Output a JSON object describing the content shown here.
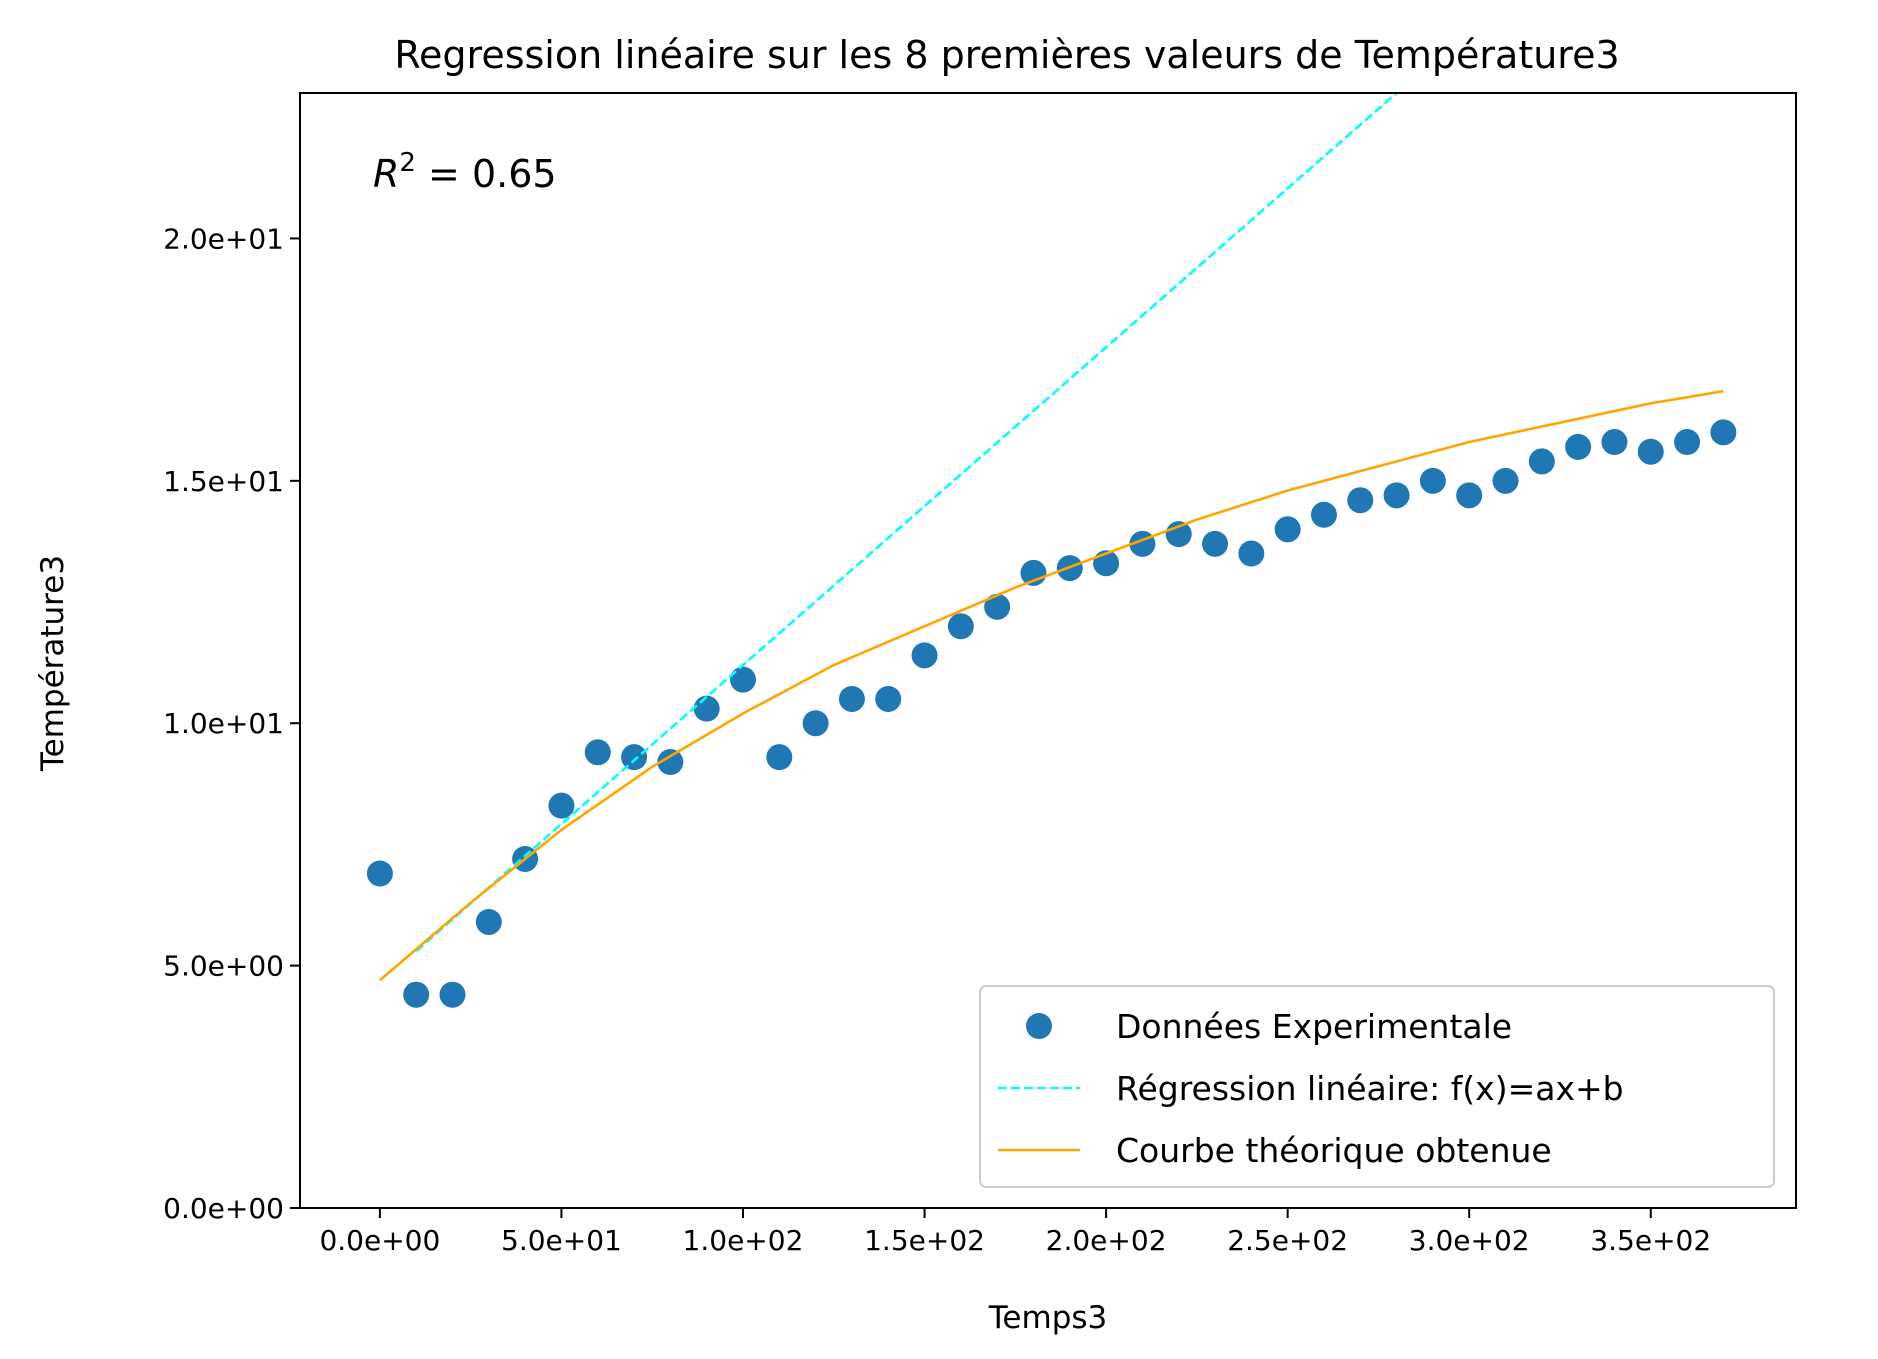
{
  "chart_data": {
    "type": "scatter",
    "title": "Regression linéaire sur les 8 premières valeurs de Température3",
    "xlabel": "Temps3",
    "ylabel": "Température3",
    "xlim": [
      -22,
      390
    ],
    "ylim": [
      0,
      23
    ],
    "x_ticks": [
      0,
      50,
      100,
      150,
      200,
      250,
      300,
      350
    ],
    "x_tick_labels": [
      "0.0e+00",
      "5.0e+01",
      "1.0e+02",
      "1.5e+02",
      "2.0e+02",
      "2.5e+02",
      "3.0e+02",
      "3.5e+02"
    ],
    "y_ticks": [
      0,
      5,
      10,
      15,
      20
    ],
    "y_tick_labels": [
      "0.0e+00",
      "5.0e+00",
      "1.0e+01",
      "1.5e+01",
      "2.0e+01"
    ],
    "annotation": "R² = 0.65",
    "grid": false,
    "legend_position": "lower-right",
    "series": [
      {
        "name": "Données Experimentale",
        "kind": "scatter",
        "color": "#1f77b4",
        "x": [
          0,
          10,
          20,
          30,
          40,
          50,
          60,
          70,
          80,
          90,
          100,
          110,
          120,
          130,
          140,
          150,
          160,
          170,
          180,
          190,
          200,
          210,
          220,
          230,
          240,
          250,
          260,
          270,
          280,
          290,
          300,
          310,
          320,
          330,
          340,
          350,
          360,
          370
        ],
        "y": [
          6.9,
          4.4,
          4.4,
          5.9,
          7.2,
          8.3,
          9.4,
          9.3,
          9.2,
          10.3,
          10.9,
          9.3,
          10.0,
          10.5,
          10.5,
          11.4,
          12.0,
          12.4,
          13.1,
          13.2,
          13.3,
          13.7,
          13.9,
          13.7,
          13.5,
          14.0,
          14.3,
          14.6,
          14.7,
          15.0,
          14.7,
          15.0,
          15.4,
          15.7,
          15.8,
          15.6,
          15.8,
          16.0
        ]
      },
      {
        "name": "Régression linéaire: f(x)=ax+b",
        "kind": "line",
        "style": "dashed",
        "color": "#00ffff",
        "x": [
          10,
          280
        ],
        "y": [
          5.3,
          23.0
        ]
      },
      {
        "name": "Courbe théorique obtenue",
        "kind": "line",
        "style": "solid",
        "color": "#ffa500",
        "x": [
          0,
          25,
          50,
          75,
          100,
          125,
          150,
          175,
          200,
          225,
          250,
          275,
          300,
          325,
          350,
          370
        ],
        "y": [
          4.7,
          6.3,
          7.8,
          9.1,
          10.2,
          11.2,
          12.0,
          12.8,
          13.5,
          14.2,
          14.8,
          15.3,
          15.8,
          16.2,
          16.6,
          16.85
        ]
      }
    ]
  }
}
